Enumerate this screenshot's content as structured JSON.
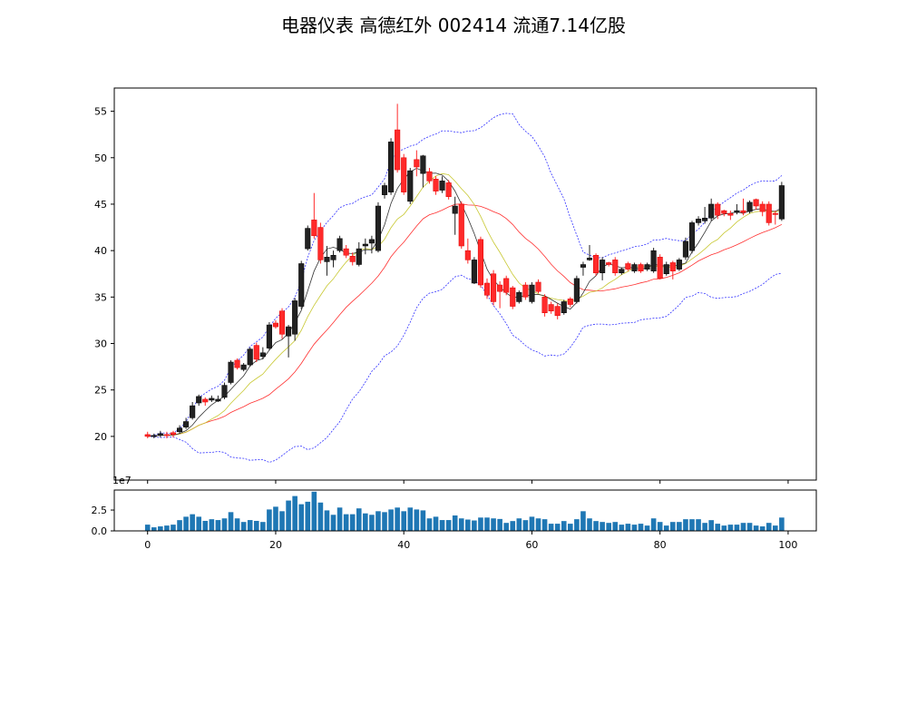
{
  "chart_data": {
    "type": "candlestick",
    "title": "电器仪表 高德红外 002414 流通7.14亿股",
    "x": "index 0-99",
    "xlim": [
      -5.2,
      104.4
    ],
    "ylim": [
      15.3,
      57.5
    ],
    "volume_ylim": [
      0,
      4.9
    ],
    "volume_offset_label": "1e7",
    "x_ticks": [
      "0",
      "20",
      "40",
      "60",
      "80",
      "100"
    ],
    "y_ticks": [
      "20",
      "25",
      "30",
      "35",
      "40",
      "45",
      "50",
      "55"
    ],
    "volume_y_ticks": [
      "0.0",
      "2.5"
    ],
    "colors": {
      "up": "#222222",
      "down": "#ff2a2a",
      "ma5": "#333333",
      "ma10": "#c8c832",
      "ma20": "#ff3030",
      "bands": "#3333ff",
      "volume": "#1f77b4"
    },
    "indicators": [
      "MA5",
      "MA10",
      "MA20 / Bollinger mid",
      "Bollinger upper (2σ)",
      "Bollinger lower (2σ)"
    ],
    "open": [
      20.2,
      20.0,
      20.1,
      20.2,
      20.4,
      20.5,
      21.0,
      22.0,
      23.6,
      24.0,
      23.9,
      23.8,
      24.2,
      25.8,
      28.2,
      27.2,
      27.7,
      29.8,
      28.6,
      29.5,
      32.2,
      33.5,
      30.8,
      31.0,
      34.0,
      40.2,
      43.3,
      42.5,
      38.8,
      39.0,
      40.0,
      40.2,
      39.4,
      38.5,
      40.5,
      40.8,
      40.0,
      46.0,
      46.3,
      53.0,
      50.0,
      45.3,
      49.8,
      48.3,
      48.5,
      47.7,
      46.5,
      47.3,
      44.0,
      45.0,
      40.0,
      36.5,
      41.2,
      36.5,
      37.5,
      36.3,
      37.0,
      36.0,
      34.5,
      36.3,
      34.5,
      36.6,
      35.0,
      34.2,
      34.0,
      33.3,
      34.8,
      34.5,
      38.2,
      39.0,
      39.5,
      37.6,
      38.7,
      39.0,
      37.6,
      38.6,
      37.8,
      38.5,
      38.0,
      37.8,
      39.3,
      37.5,
      38.7,
      38.0,
      39.3,
      40.0,
      43.0,
      43.2,
      43.5,
      45.0,
      44.3,
      44.0,
      44.1,
      44.3,
      44.2,
      45.5,
      45.0,
      45.0,
      44.0,
      43.4
    ],
    "close": [
      20.0,
      20.1,
      20.3,
      20.1,
      20.2,
      20.9,
      21.6,
      23.3,
      24.3,
      23.7,
      24.1,
      24.0,
      25.5,
      28.0,
      27.4,
      27.7,
      29.4,
      28.3,
      29.0,
      32.0,
      31.8,
      31.0,
      31.8,
      34.6,
      38.6,
      42.4,
      41.6,
      39.0,
      39.3,
      39.5,
      41.3,
      39.5,
      38.8,
      40.2,
      40.7,
      41.2,
      44.8,
      47.0,
      51.7,
      48.7,
      46.3,
      48.6,
      49.0,
      50.2,
      47.5,
      46.4,
      47.5,
      45.8,
      44.8,
      40.5,
      39.0,
      39.0,
      36.3,
      35.2,
      34.5,
      35.6,
      35.5,
      34.0,
      35.5,
      35.0,
      36.3,
      35.6,
      33.3,
      33.5,
      33.0,
      34.5,
      34.2,
      37.0,
      38.5,
      39.2,
      37.6,
      39.0,
      38.5,
      37.6,
      38.0,
      38.0,
      38.5,
      37.8,
      38.5,
      40.0,
      37.0,
      38.5,
      37.8,
      39.0,
      41.0,
      43.0,
      43.4,
      43.5,
      45.0,
      43.8,
      44.0,
      43.8,
      44.3,
      44.1,
      45.2,
      44.8,
      44.2,
      43.0,
      43.9,
      47.0
    ],
    "high": [
      20.5,
      20.3,
      20.6,
      20.5,
      20.6,
      21.2,
      22.0,
      23.7,
      24.5,
      24.2,
      24.4,
      24.4,
      25.8,
      28.2,
      28.4,
      27.9,
      29.6,
      30.1,
      29.6,
      32.3,
      32.5,
      33.8,
      32.0,
      34.9,
      38.9,
      42.7,
      46.2,
      43.0,
      40.5,
      40.0,
      41.6,
      40.6,
      39.8,
      40.9,
      41.3,
      41.6,
      45.2,
      47.3,
      52.1,
      55.8,
      50.4,
      48.9,
      50.8,
      50.3,
      48.9,
      48.0,
      48.0,
      47.6,
      45.8,
      45.3,
      41.3,
      39.3,
      41.5,
      37.0,
      37.9,
      36.7,
      37.3,
      36.2,
      35.7,
      36.6,
      36.6,
      36.9,
      35.3,
      34.5,
      34.3,
      34.7,
      35.0,
      37.3,
      38.8,
      40.6,
      39.7,
      39.3,
      38.8,
      39.3,
      38.2,
      38.8,
      38.7,
      38.7,
      38.7,
      40.3,
      39.6,
      38.8,
      38.9,
      39.2,
      41.4,
      43.2,
      43.7,
      44.7,
      45.6,
      45.2,
      44.4,
      44.3,
      45.0,
      45.6,
      45.4,
      45.6,
      45.3,
      45.3,
      44.3,
      47.4
    ],
    "low": [
      19.8,
      19.8,
      19.9,
      19.8,
      19.9,
      20.3,
      20.8,
      21.8,
      23.3,
      23.3,
      23.7,
      23.7,
      24.0,
      25.6,
      27.2,
      27.0,
      27.5,
      28.0,
      28.3,
      29.3,
      31.6,
      30.5,
      28.5,
      30.3,
      33.7,
      40.0,
      41.3,
      38.6,
      37.3,
      38.2,
      39.8,
      39.2,
      38.4,
      38.3,
      39.6,
      39.7,
      39.8,
      45.6,
      46.0,
      48.4,
      46.0,
      45.0,
      48.0,
      46.8,
      47.2,
      46.0,
      46.2,
      45.5,
      41.7,
      40.2,
      38.6,
      36.4,
      36.0,
      34.8,
      34.1,
      33.8,
      35.2,
      33.7,
      34.3,
      34.7,
      34.3,
      35.4,
      32.9,
      33.2,
      32.6,
      33.1,
      33.9,
      34.3,
      37.3,
      38.9,
      37.3,
      36.8,
      38.3,
      37.3,
      37.4,
      37.8,
      37.6,
      37.6,
      37.8,
      37.6,
      36.9,
      37.3,
      36.9,
      37.8,
      39.0,
      39.7,
      42.7,
      42.9,
      43.2,
      43.4,
      43.7,
      43.3,
      43.9,
      43.8,
      44.0,
      44.4,
      43.7,
      42.7,
      42.8,
      43.2
    ],
    "volume_1e7": [
      0.75,
      0.43,
      0.54,
      0.64,
      0.75,
      1.29,
      1.7,
      2.0,
      1.7,
      1.2,
      1.4,
      1.3,
      1.5,
      2.25,
      1.5,
      1.07,
      1.3,
      1.2,
      1.07,
      2.57,
      2.9,
      2.36,
      3.64,
      4.18,
      3.2,
      3.5,
      4.7,
      3.4,
      2.46,
      1.93,
      2.8,
      2.0,
      2.0,
      2.7,
      2.1,
      1.93,
      2.36,
      2.25,
      2.57,
      2.8,
      2.36,
      2.8,
      2.57,
      2.46,
      1.5,
      1.7,
      1.3,
      1.3,
      1.85,
      1.5,
      1.36,
      1.25,
      1.6,
      1.6,
      1.5,
      1.43,
      0.96,
      1.18,
      1.5,
      1.29,
      1.7,
      1.5,
      1.4,
      0.86,
      0.86,
      1.18,
      0.86,
      1.4,
      2.36,
      1.5,
      1.18,
      1.07,
      0.96,
      1.07,
      0.75,
      0.86,
      0.75,
      0.86,
      0.64,
      1.5,
      1.07,
      0.64,
      1.07,
      1.07,
      1.4,
      1.4,
      1.4,
      0.96,
      1.29,
      0.86,
      0.64,
      0.75,
      0.75,
      0.96,
      0.96,
      0.64,
      0.54,
      0.96,
      0.64,
      1.6
    ]
  }
}
